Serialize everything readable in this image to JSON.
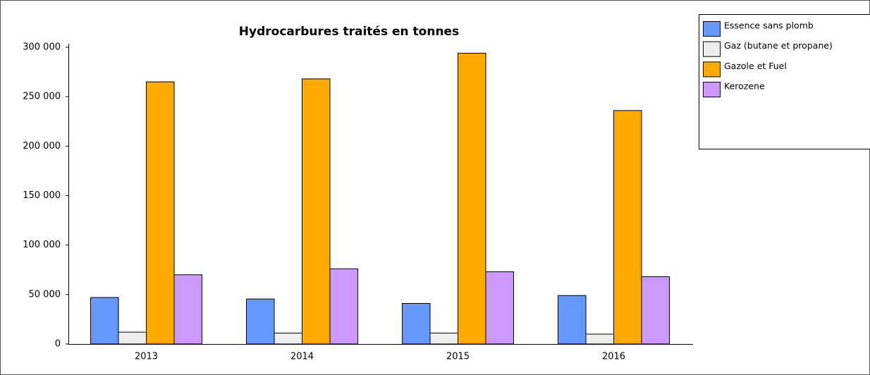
{
  "chart_data": {
    "type": "bar",
    "title": "Hydrocarbures traités en tonnes",
    "categories": [
      "2013",
      "2014",
      "2015",
      "2016"
    ],
    "series": [
      {
        "name": "Essence sans plomb",
        "color": "#6699ff",
        "values": [
          47000,
          45500,
          41000,
          49000
        ]
      },
      {
        "name": "Gaz (butane et propane)",
        "color": "#eeeeee",
        "values": [
          12000,
          11000,
          11000,
          10000
        ]
      },
      {
        "name": "Gazole et Fuel",
        "color": "#ffaa00",
        "values": [
          265000,
          268000,
          294000,
          236000
        ]
      },
      {
        "name": "Kerozene",
        "color": "#cc99ff",
        "values": [
          70000,
          76000,
          73000,
          68000
        ]
      }
    ],
    "ylim": [
      0,
      300000
    ],
    "yticks": [
      0,
      {
        "value": 50000,
        "label": "50 000"
      },
      {
        "value": 100000,
        "label": "100 000"
      },
      {
        "value": 150000,
        "label": "150 000"
      },
      {
        "value": 200000,
        "label": "200 000"
      },
      {
        "value": 250000,
        "label": "250 000"
      },
      {
        "value": 300000,
        "label": "300 000"
      }
    ],
    "grid": false,
    "legend": "top-right"
  }
}
